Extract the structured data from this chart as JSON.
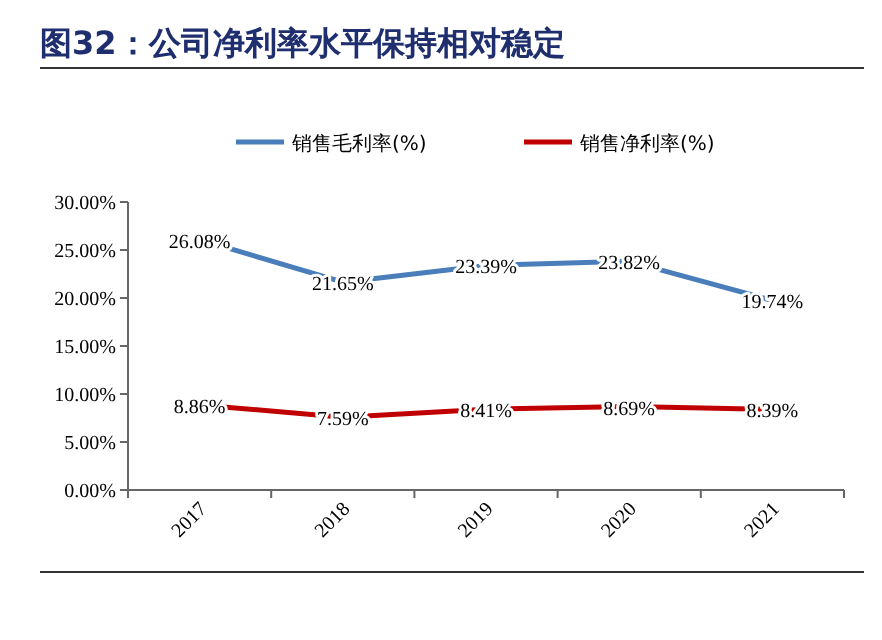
{
  "chart_data": {
    "type": "line",
    "title": "图32：公司净利率水平保持相对稳定",
    "categories": [
      "2017",
      "2018",
      "2019",
      "2020",
      "2021"
    ],
    "series": [
      {
        "name": "销售毛利率(%)",
        "color": "#4a7ebb",
        "values": [
          26.08,
          21.65,
          23.39,
          23.82,
          19.74
        ],
        "value_labels": [
          "26.08%",
          "21.65%",
          "23.39%",
          "23.82%",
          "19.74%"
        ]
      },
      {
        "name": "销售净利率(%)",
        "color": "#c00000",
        "values": [
          8.86,
          7.59,
          8.41,
          8.69,
          8.39
        ],
        "value_labels": [
          "8.86%",
          "7.59%",
          "8.41%",
          "8.69%",
          "8.39%"
        ]
      }
    ],
    "ylim": [
      0,
      30
    ],
    "yticks": [
      {
        "value": 0,
        "label": "0.00%"
      },
      {
        "value": 5,
        "label": "5.00%"
      },
      {
        "value": 10,
        "label": "10.00%"
      },
      {
        "value": 15,
        "label": "15.00%"
      },
      {
        "value": 20,
        "label": "20.00%"
      },
      {
        "value": 25,
        "label": "25.00%"
      },
      {
        "value": 30,
        "label": "30.00%"
      }
    ],
    "legend": "top",
    "grid": false,
    "marker": "none",
    "line_style": "solid"
  }
}
